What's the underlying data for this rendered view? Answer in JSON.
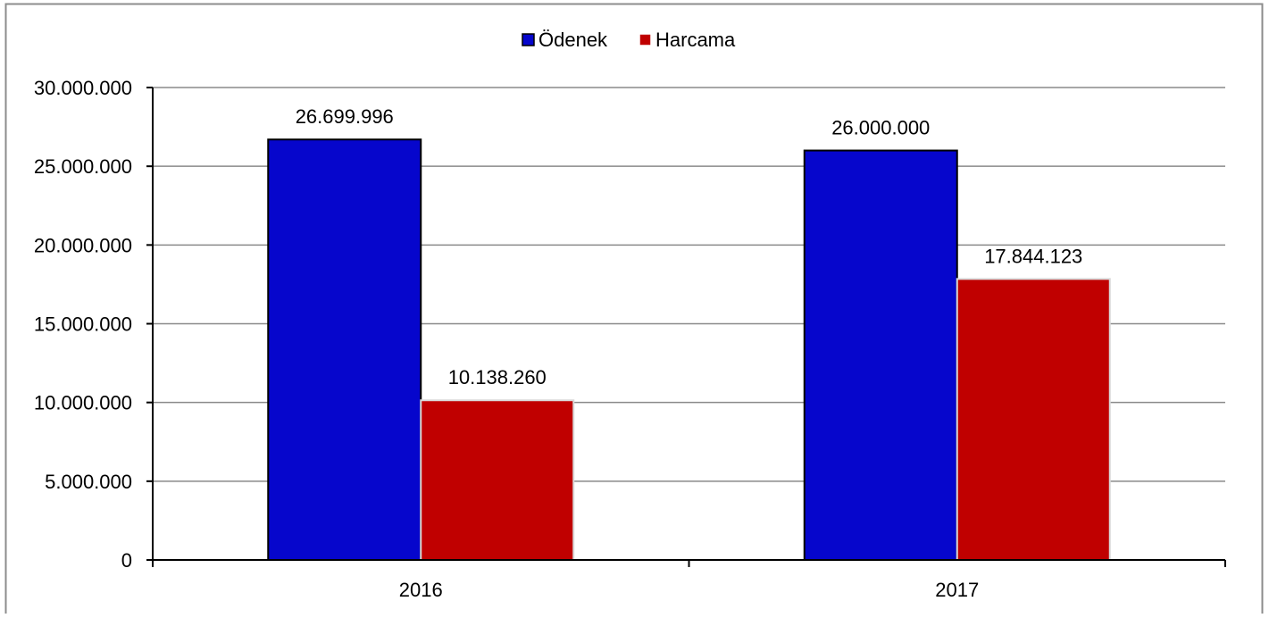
{
  "chart_data": {
    "type": "bar",
    "categories": [
      "2016",
      "2017"
    ],
    "series": [
      {
        "name": "Ödenek",
        "color": "#0606CC",
        "values": [
          26699996,
          26000000
        ],
        "labels": [
          "26.699.996",
          "26.000.000"
        ]
      },
      {
        "name": "Harcama",
        "color": "#C00000",
        "values": [
          10138260,
          17844123
        ],
        "labels": [
          "10.138.260",
          "17.844.123"
        ]
      }
    ],
    "ylim": [
      0,
      30000000
    ],
    "yticks": [
      0,
      5000000,
      10000000,
      15000000,
      20000000,
      25000000,
      30000000
    ],
    "ytick_labels": [
      "0",
      "5.000.000",
      "10.000.000",
      "15.000.000",
      "20.000.000",
      "25.000.000",
      "30.000.000"
    ],
    "grid": true,
    "legend_position": "top-center",
    "title": "",
    "xlabel": "",
    "ylabel": ""
  }
}
